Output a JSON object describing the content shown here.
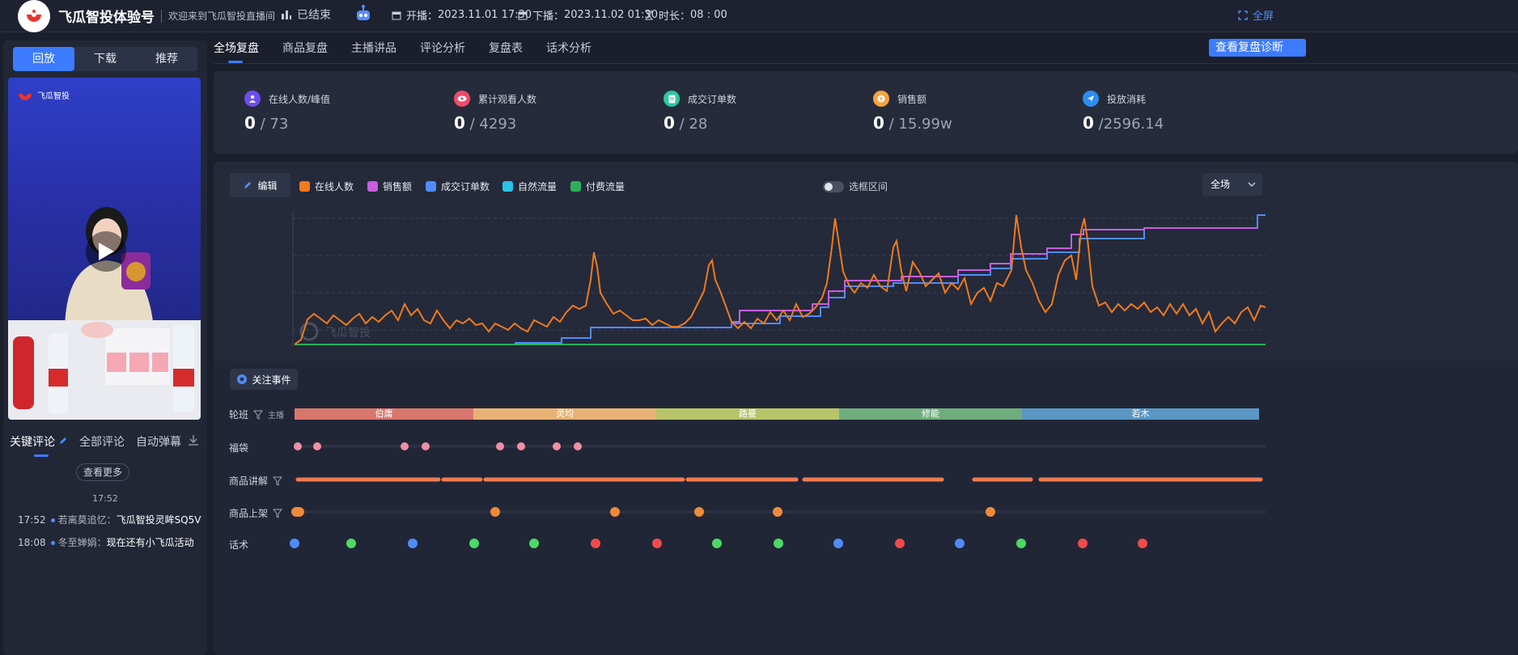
{
  "topbar": {
    "brand": "飞瓜智投体验号",
    "welcome": "欢迎来到飞瓜智投直播间",
    "status": "已结束",
    "start_label": "开播：",
    "start_value": "2023.11.01 17:30",
    "end_label": "下播：",
    "end_value": "2023.11.02 01:30",
    "duration_label": "时长：",
    "duration_value": "08 : 00",
    "fullscreen": "全屏"
  },
  "left": {
    "tabs": [
      "回放",
      "下载",
      "推荐"
    ],
    "video_logo": "飞瓜智投",
    "comment_tabs": [
      "关键评论",
      "全部评论",
      "自动弹幕"
    ],
    "see_more": "查看更多",
    "comment_time": "17:52",
    "comments": [
      {
        "time": "17:52",
        "user": "若离莫追忆：",
        "text": "飞瓜智投灵眸SQ5V"
      },
      {
        "time": "18:08",
        "user": "冬至婵娟：",
        "text": "现在还有小飞瓜活动"
      }
    ]
  },
  "main": {
    "tabs": [
      "全场复盘",
      "商品复盘",
      "主播讲品",
      "评论分析",
      "复盘表",
      "话术分析"
    ],
    "report_button": "查看复盘诊断",
    "stats": [
      {
        "label": "在线人数/峰值",
        "value": "0",
        "total": " / 73",
        "color": "#6c4df0"
      },
      {
        "label": "累计观看人数",
        "value": "0",
        "total": " / 4293",
        "color": "#f04a6a"
      },
      {
        "label": "成交订单数",
        "value": "0",
        "total": " / 28",
        "color": "#2fc6a0"
      },
      {
        "label": "销售额",
        "value": "0",
        "total": " / 15.99w",
        "color": "#f5a342"
      },
      {
        "label": "投放消耗",
        "value": "0",
        "total": " /2596.14",
        "color": "#2d8cf0"
      }
    ],
    "edit_label": "编辑",
    "legend": [
      {
        "name": "在线人数",
        "color": "#f07a1e"
      },
      {
        "name": "销售额",
        "color": "#c75ee0"
      },
      {
        "name": "成交订单数",
        "color": "#4f8cff"
      },
      {
        "name": "自然流量",
        "color": "#29c4e8"
      },
      {
        "name": "付费流量",
        "color": "#2fae5a"
      }
    ],
    "toggle_label": "选框区间",
    "range_select": "全场",
    "watermark": "飞瓜智投",
    "events_label": "关注事件",
    "rows": {
      "shift": "轮班",
      "shift_sub": "主播",
      "bag": "福袋",
      "explain": "商品讲解",
      "listing": "商品上架",
      "more": "话术"
    },
    "shifts": [
      {
        "name": "伯庸",
        "color": "#d9766d"
      },
      {
        "name": "灵均",
        "color": "#e8b274"
      },
      {
        "name": "路曼",
        "color": "#b8c46a"
      },
      {
        "name": "修能",
        "color": "#6fae7c"
      },
      {
        "name": "若木",
        "color": "#5a97c4"
      }
    ]
  }
}
